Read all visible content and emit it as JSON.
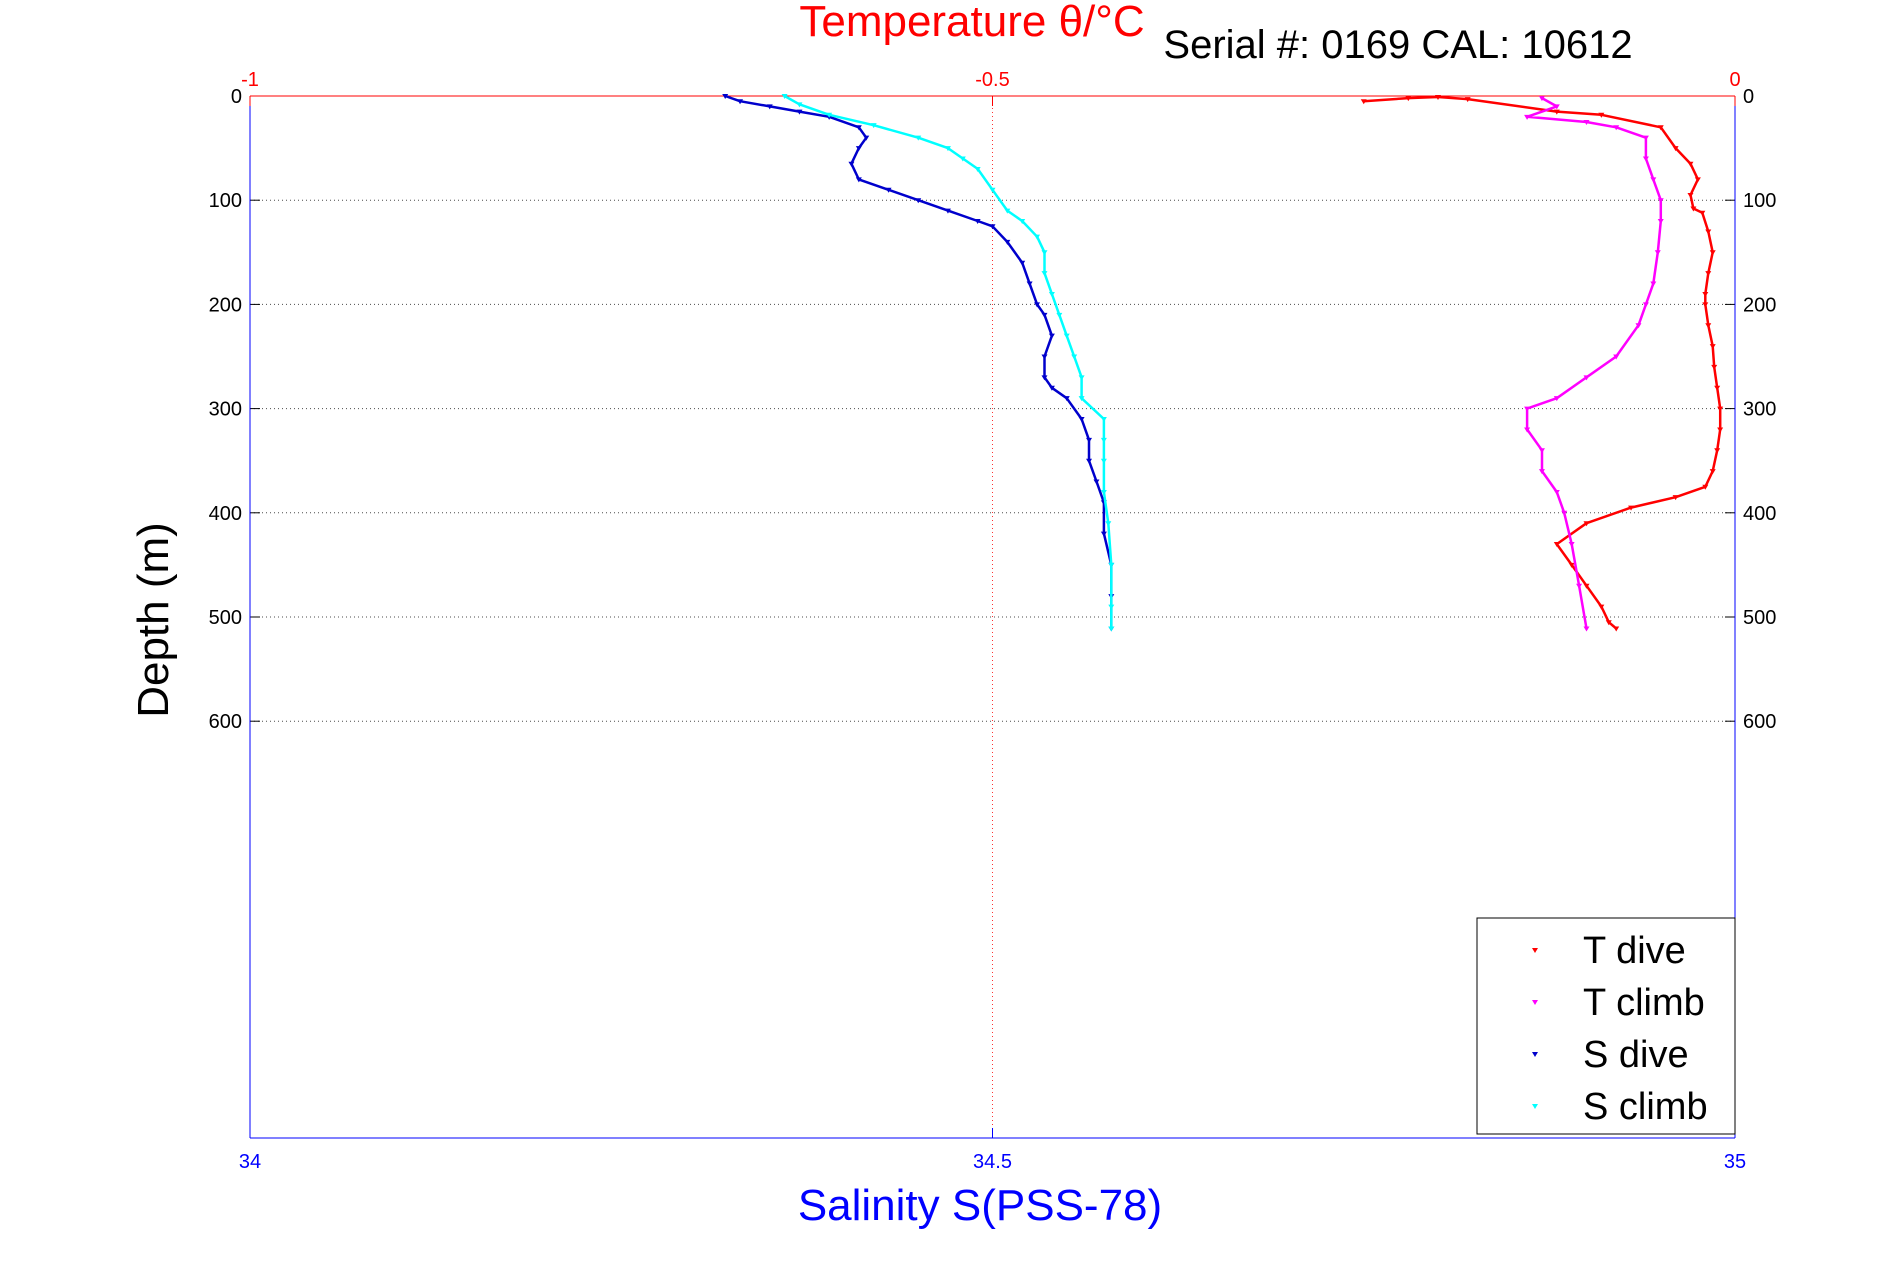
{
  "chart_data": {
    "type": "scatter",
    "title": "Temperature θ/°C",
    "annotation": "Serial #: 0169 CAL: 10612",
    "ylabel": "Depth (m)",
    "xlabel_bottom": "Salinity S(PSS-78)",
    "y_axis": {
      "range": [
        0,
        1000
      ],
      "reversed": true,
      "ticks": [
        0,
        100,
        200,
        300,
        400,
        500,
        600
      ],
      "tick_labels": [
        "0",
        "100",
        "200",
        "300",
        "400",
        "500",
        "600"
      ]
    },
    "x_top": {
      "range": [
        -1,
        0
      ],
      "ticks": [
        -1,
        -0.5,
        0
      ],
      "tick_labels": [
        "-1",
        "-0.5",
        "0"
      ],
      "color": "#ff0000"
    },
    "x_bottom": {
      "range": [
        34,
        35
      ],
      "ticks": [
        34,
        34.5,
        35
      ],
      "tick_labels": [
        "34",
        "34.5",
        "35"
      ],
      "color": "#0000ff"
    },
    "grid": true,
    "legend_position": "bottom-right",
    "series": [
      {
        "name": "T dive",
        "axis": "top",
        "color": "#ff0000",
        "x": [
          -0.25,
          -0.22,
          -0.2,
          -0.18,
          -0.12,
          -0.09,
          -0.05,
          -0.04,
          -0.03,
          -0.025,
          -0.03,
          -0.028,
          -0.022,
          -0.018,
          -0.015,
          -0.018,
          -0.02,
          -0.02,
          -0.018,
          -0.015,
          -0.014,
          -0.012,
          -0.01,
          -0.01,
          -0.012,
          -0.015,
          -0.02,
          -0.04,
          -0.07,
          -0.1,
          -0.12,
          -0.11,
          -0.1,
          -0.09,
          -0.085,
          -0.08
        ],
        "y": [
          5,
          2,
          1,
          3,
          15,
          18,
          30,
          50,
          65,
          80,
          95,
          108,
          112,
          130,
          150,
          170,
          190,
          200,
          220,
          240,
          260,
          280,
          300,
          320,
          340,
          360,
          375,
          385,
          395,
          410,
          430,
          450,
          470,
          490,
          505,
          511
        ]
      },
      {
        "name": "T climb",
        "axis": "top",
        "color": "#ff00ff",
        "x": [
          -0.13,
          -0.12,
          -0.14,
          -0.1,
          -0.08,
          -0.06,
          -0.06,
          -0.055,
          -0.05,
          -0.05,
          -0.052,
          -0.055,
          -0.06,
          -0.065,
          -0.08,
          -0.1,
          -0.12,
          -0.14,
          -0.14,
          -0.13,
          -0.13,
          -0.12,
          -0.115,
          -0.11,
          -0.105,
          -0.1
        ],
        "y": [
          2,
          10,
          20,
          25,
          30,
          40,
          60,
          80,
          100,
          120,
          150,
          180,
          200,
          220,
          250,
          270,
          290,
          300,
          320,
          340,
          360,
          380,
          400,
          430,
          470,
          511
        ]
      },
      {
        "name": "S dive",
        "axis": "bottom",
        "color": "#0000cc",
        "x": [
          34.32,
          34.33,
          34.35,
          34.37,
          34.39,
          34.41,
          34.415,
          34.41,
          34.405,
          34.41,
          34.43,
          34.45,
          34.47,
          34.49,
          34.5,
          34.51,
          34.52,
          34.525,
          34.53,
          34.535,
          34.54,
          34.535,
          34.535,
          34.54,
          34.55,
          34.56,
          34.565,
          34.565,
          34.57,
          34.575,
          34.575,
          34.58,
          34.58,
          34.58
        ],
        "y": [
          0,
          5,
          10,
          15,
          20,
          30,
          40,
          50,
          65,
          80,
          90,
          100,
          110,
          120,
          125,
          140,
          160,
          180,
          200,
          210,
          230,
          250,
          270,
          280,
          290,
          310,
          330,
          350,
          370,
          390,
          420,
          450,
          480,
          511
        ]
      },
      {
        "name": "S climb",
        "axis": "bottom",
        "color": "#00ffff",
        "x": [
          34.36,
          34.37,
          34.39,
          34.42,
          34.45,
          34.47,
          34.48,
          34.49,
          34.5,
          34.51,
          34.52,
          34.53,
          34.535,
          34.535,
          34.54,
          34.545,
          34.55,
          34.555,
          34.56,
          34.56,
          34.575,
          34.575,
          34.575,
          34.575,
          34.578,
          34.58,
          34.58,
          34.58
        ],
        "y": [
          0,
          8,
          18,
          28,
          40,
          50,
          60,
          70,
          90,
          110,
          120,
          135,
          150,
          170,
          190,
          210,
          230,
          250,
          270,
          290,
          310,
          330,
          350,
          380,
          410,
          450,
          490,
          511
        ]
      }
    ]
  }
}
